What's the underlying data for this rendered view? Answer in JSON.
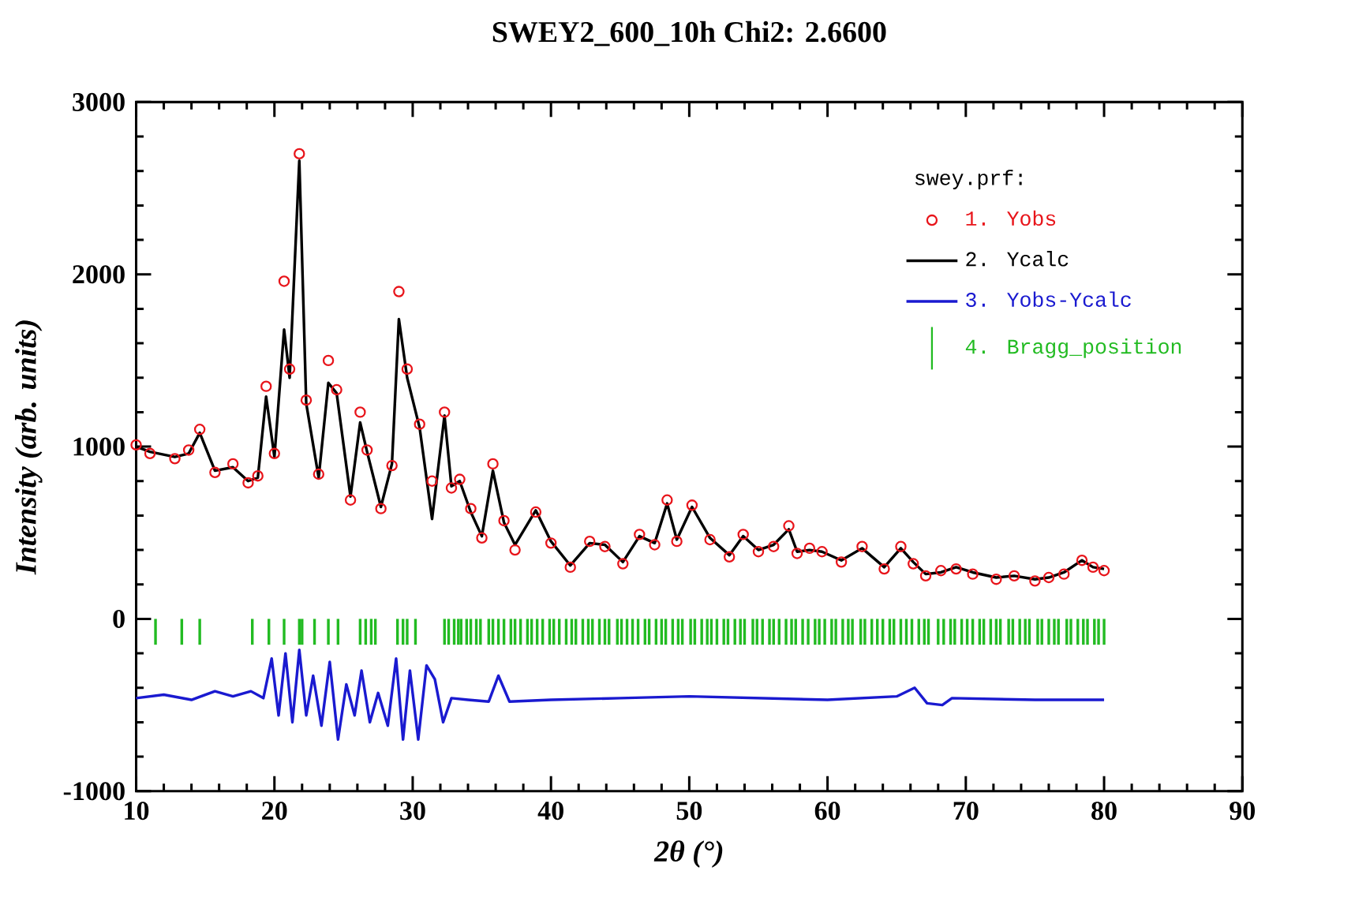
{
  "chart_data": {
    "type": "line",
    "title": "SWEY2_600_10h   Chi2:  2.6600",
    "xlabel": "2θ (°)",
    "ylabel": "Intensity (arb. units)",
    "legend_title": "swey.prf:",
    "legend": "top right",
    "xlim": [
      10,
      90
    ],
    "ylim": [
      -1000,
      3000
    ],
    "xticks": [
      10,
      20,
      30,
      40,
      50,
      60,
      70,
      80,
      90
    ],
    "yticks": [
      -1000,
      0,
      1000,
      2000,
      3000
    ],
    "series": [
      {
        "name": "1. Yobs",
        "type": "scatter",
        "marker": "circle",
        "color": "#e8141a",
        "x": [
          10,
          11,
          12.8,
          13.8,
          14.6,
          15.7,
          17.0,
          18.1,
          18.8,
          19.4,
          20.0,
          20.7,
          21.1,
          21.8,
          22.3,
          23.2,
          23.9,
          24.5,
          25.5,
          26.2,
          26.7,
          27.7,
          28.5,
          29.0,
          29.6,
          30.5,
          31.4,
          32.3,
          32.8,
          33.4,
          34.2,
          35.0,
          35.8,
          36.6,
          37.4,
          38.9,
          40.0,
          41.4,
          42.8,
          43.9,
          45.2,
          46.4,
          47.5,
          48.4,
          49.1,
          50.2,
          51.5,
          52.9,
          53.9,
          55.0,
          56.1,
          57.2,
          57.8,
          58.7,
          59.6,
          61.0,
          62.5,
          64.1,
          65.3,
          66.2,
          67.1,
          68.2,
          69.3,
          70.5,
          72.2,
          73.5,
          75.0,
          76.0,
          77.1,
          78.4,
          79.2,
          80
        ],
        "values": [
          1010,
          960,
          930,
          980,
          1100,
          850,
          900,
          790,
          830,
          1350,
          960,
          1960,
          1450,
          2700,
          1270,
          840,
          1500,
          1330,
          690,
          1200,
          980,
          640,
          890,
          1900,
          1450,
          1130,
          800,
          1200,
          760,
          810,
          640,
          470,
          900,
          570,
          400,
          620,
          440,
          300,
          450,
          420,
          320,
          490,
          430,
          690,
          450,
          660,
          460,
          360,
          490,
          390,
          420,
          540,
          380,
          410,
          390,
          330,
          420,
          290,
          420,
          320,
          250,
          280,
          290,
          260,
          230,
          250,
          220,
          240,
          260,
          340,
          300,
          280
        ]
      },
      {
        "name": "2. Ycalc",
        "line_style": "solid",
        "color": "#000000",
        "x": [
          10,
          11,
          12.8,
          13.8,
          14.6,
          15.7,
          17.0,
          18.1,
          18.8,
          19.4,
          20.0,
          20.7,
          21.1,
          21.8,
          22.3,
          23.2,
          23.9,
          24.5,
          25.5,
          26.2,
          26.7,
          27.7,
          28.5,
          29.0,
          29.6,
          30.5,
          31.4,
          32.3,
          32.8,
          33.4,
          34.2,
          35.0,
          35.8,
          36.6,
          37.4,
          38.9,
          40.0,
          41.4,
          42.8,
          43.9,
          45.2,
          46.4,
          47.5,
          48.4,
          49.1,
          50.2,
          51.5,
          52.9,
          53.9,
          55.0,
          56.1,
          57.2,
          57.8,
          58.7,
          59.6,
          61.0,
          62.5,
          64.1,
          65.3,
          66.2,
          67.1,
          68.2,
          69.3,
          70.5,
          72.2,
          73.5,
          75.0,
          76.0,
          77.1,
          78.4,
          79.2,
          80
        ],
        "values": [
          1000,
          970,
          940,
          960,
          1080,
          860,
          880,
          800,
          820,
          1290,
          940,
          1680,
          1400,
          2660,
          1250,
          820,
          1370,
          1310,
          710,
          1140,
          970,
          650,
          900,
          1740,
          1400,
          1110,
          580,
          1180,
          770,
          800,
          620,
          480,
          860,
          560,
          430,
          630,
          450,
          310,
          440,
          430,
          330,
          480,
          440,
          670,
          460,
          650,
          470,
          370,
          480,
          400,
          430,
          520,
          390,
          400,
          390,
          340,
          410,
          300,
          410,
          330,
          260,
          270,
          300,
          270,
          240,
          250,
          230,
          240,
          270,
          340,
          300,
          290
        ]
      },
      {
        "name": "3. Yobs-Ycalc",
        "line_style": "solid",
        "color": "#1a1ad0",
        "x": [
          10,
          12,
          14,
          15.7,
          17,
          18.3,
          19.2,
          19.8,
          20.3,
          20.8,
          21.3,
          21.8,
          22.3,
          22.8,
          23.4,
          24.0,
          24.6,
          25.2,
          25.8,
          26.3,
          26.9,
          27.5,
          28.2,
          28.8,
          29.3,
          29.8,
          30.4,
          31.0,
          31.6,
          32.2,
          32.8,
          34,
          35.5,
          36.2,
          37,
          40,
          45,
          50,
          55,
          60,
          65,
          66.3,
          67.2,
          68.3,
          69,
          75,
          80
        ],
        "values": [
          -460,
          -440,
          -470,
          -420,
          -450,
          -420,
          -460,
          -230,
          -560,
          -200,
          -600,
          -180,
          -560,
          -330,
          -620,
          -250,
          -700,
          -380,
          -560,
          -300,
          -600,
          -430,
          -620,
          -230,
          -700,
          -300,
          -700,
          -270,
          -350,
          -600,
          -460,
          -470,
          -480,
          -330,
          -480,
          -470,
          -460,
          -450,
          -460,
          -470,
          -450,
          -400,
          -490,
          -500,
          -460,
          -470,
          -470
        ]
      },
      {
        "name": "4. Bragg_position",
        "type": "bar",
        "color": "#22bb22",
        "base": [
          -150,
          -150,
          -150,
          -150,
          -150,
          -150,
          -150,
          -150,
          -150,
          -150,
          -150,
          -150,
          -150,
          -150,
          -150,
          -150,
          -150,
          -150,
          -150,
          -150,
          -150,
          -150,
          -150,
          -150,
          -150,
          -150,
          -150,
          -150,
          -150,
          -150,
          -150,
          -150,
          -150,
          -150,
          -150,
          -150,
          -150,
          -150,
          -150,
          -150,
          -150,
          -150,
          -150,
          -150,
          -150,
          -150,
          -150,
          -150,
          -150,
          -150,
          -150,
          -150,
          -150,
          -150,
          -150,
          -150,
          -150,
          -150,
          -150,
          -150,
          -150,
          -150,
          -150,
          -150,
          -150,
          -150,
          -150,
          -150,
          -150,
          -150,
          -150,
          -150,
          -150,
          -150,
          -150,
          -150,
          -150,
          -150,
          -150,
          -150,
          -150,
          -150,
          -150,
          -150,
          -150,
          -150,
          -150,
          -150,
          -150,
          -150,
          -150,
          -150,
          -150,
          -150,
          -150,
          -150,
          -150,
          -150,
          -150,
          -150,
          -150,
          -150,
          -150,
          -150,
          -150,
          -150,
          -150,
          -150,
          -150,
          -150,
          -150,
          -150,
          -150,
          -150,
          -150,
          -150,
          -150,
          -150,
          -150,
          -150,
          -150,
          -150,
          -150,
          -150,
          -150,
          -150,
          -150,
          -150,
          -150,
          -150,
          -150,
          -150,
          -150,
          -150,
          -150,
          -150,
          -150
        ],
        "x": [
          11.4,
          13.3,
          14.6,
          18.4,
          19.6,
          20.7,
          21.8,
          22.0,
          22.9,
          23.9,
          24.6,
          26.2,
          26.6,
          27.0,
          27.3,
          28.9,
          29.3,
          29.6,
          30.2,
          32.3,
          32.6,
          33.0,
          33.3,
          33.5,
          33.9,
          34.2,
          34.6,
          34.9,
          35.5,
          35.8,
          36.2,
          36.6,
          37.1,
          37.4,
          37.8,
          38.3,
          38.6,
          39.0,
          39.4,
          39.9,
          40.2,
          40.6,
          41.1,
          41.5,
          41.8,
          42.3,
          42.7,
          43.0,
          43.5,
          43.9,
          44.2,
          44.8,
          45.1,
          45.5,
          45.9,
          46.3,
          46.8,
          47.1,
          47.6,
          48.0,
          48.3,
          48.8,
          49.2,
          49.5,
          50.1,
          50.4,
          50.9,
          51.3,
          51.6,
          52.0,
          52.5,
          52.8,
          53.3,
          53.7,
          54.0,
          54.6,
          54.9,
          55.3,
          55.8,
          56.1,
          56.5,
          57.0,
          57.4,
          57.7,
          58.2,
          58.6,
          59.1,
          59.4,
          59.8,
          60.3,
          60.6,
          61.1,
          61.5,
          61.8,
          62.4,
          62.7,
          63.2,
          63.6,
          64.0,
          64.5,
          64.8,
          65.3,
          65.7,
          66.1,
          66.6,
          67.0,
          67.3,
          68.0,
          68.4,
          68.9,
          69.2,
          69.7,
          70.1,
          70.5,
          71.0,
          71.3,
          71.8,
          72.2,
          72.5,
          73.1,
          73.4,
          73.9,
          74.3,
          74.6,
          75.2,
          75.5,
          76.0,
          76.4,
          76.7,
          77.3,
          77.6,
          78.1,
          78.5,
          78.8,
          79.3,
          79.6,
          80.0
        ],
        "values": [
          150,
          150,
          150,
          150,
          150,
          150,
          150,
          150,
          150,
          150,
          150,
          150,
          150,
          150,
          150,
          150,
          150,
          150,
          150,
          150,
          150,
          150,
          150,
          150,
          150,
          150,
          150,
          150,
          150,
          150,
          150,
          150,
          150,
          150,
          150,
          150,
          150,
          150,
          150,
          150,
          150,
          150,
          150,
          150,
          150,
          150,
          150,
          150,
          150,
          150,
          150,
          150,
          150,
          150,
          150,
          150,
          150,
          150,
          150,
          150,
          150,
          150,
          150,
          150,
          150,
          150,
          150,
          150,
          150,
          150,
          150,
          150,
          150,
          150,
          150,
          150,
          150,
          150,
          150,
          150,
          150,
          150,
          150,
          150,
          150,
          150,
          150,
          150,
          150,
          150,
          150,
          150,
          150,
          150,
          150,
          150,
          150,
          150,
          150,
          150,
          150,
          150,
          150,
          150,
          150,
          150,
          150,
          150,
          150,
          150,
          150,
          150,
          150,
          150,
          150,
          150,
          150,
          150,
          150,
          150,
          150,
          150,
          150,
          150,
          150,
          150,
          150,
          150,
          150,
          150,
          150,
          150,
          150,
          150,
          150,
          150,
          150
        ]
      }
    ]
  }
}
